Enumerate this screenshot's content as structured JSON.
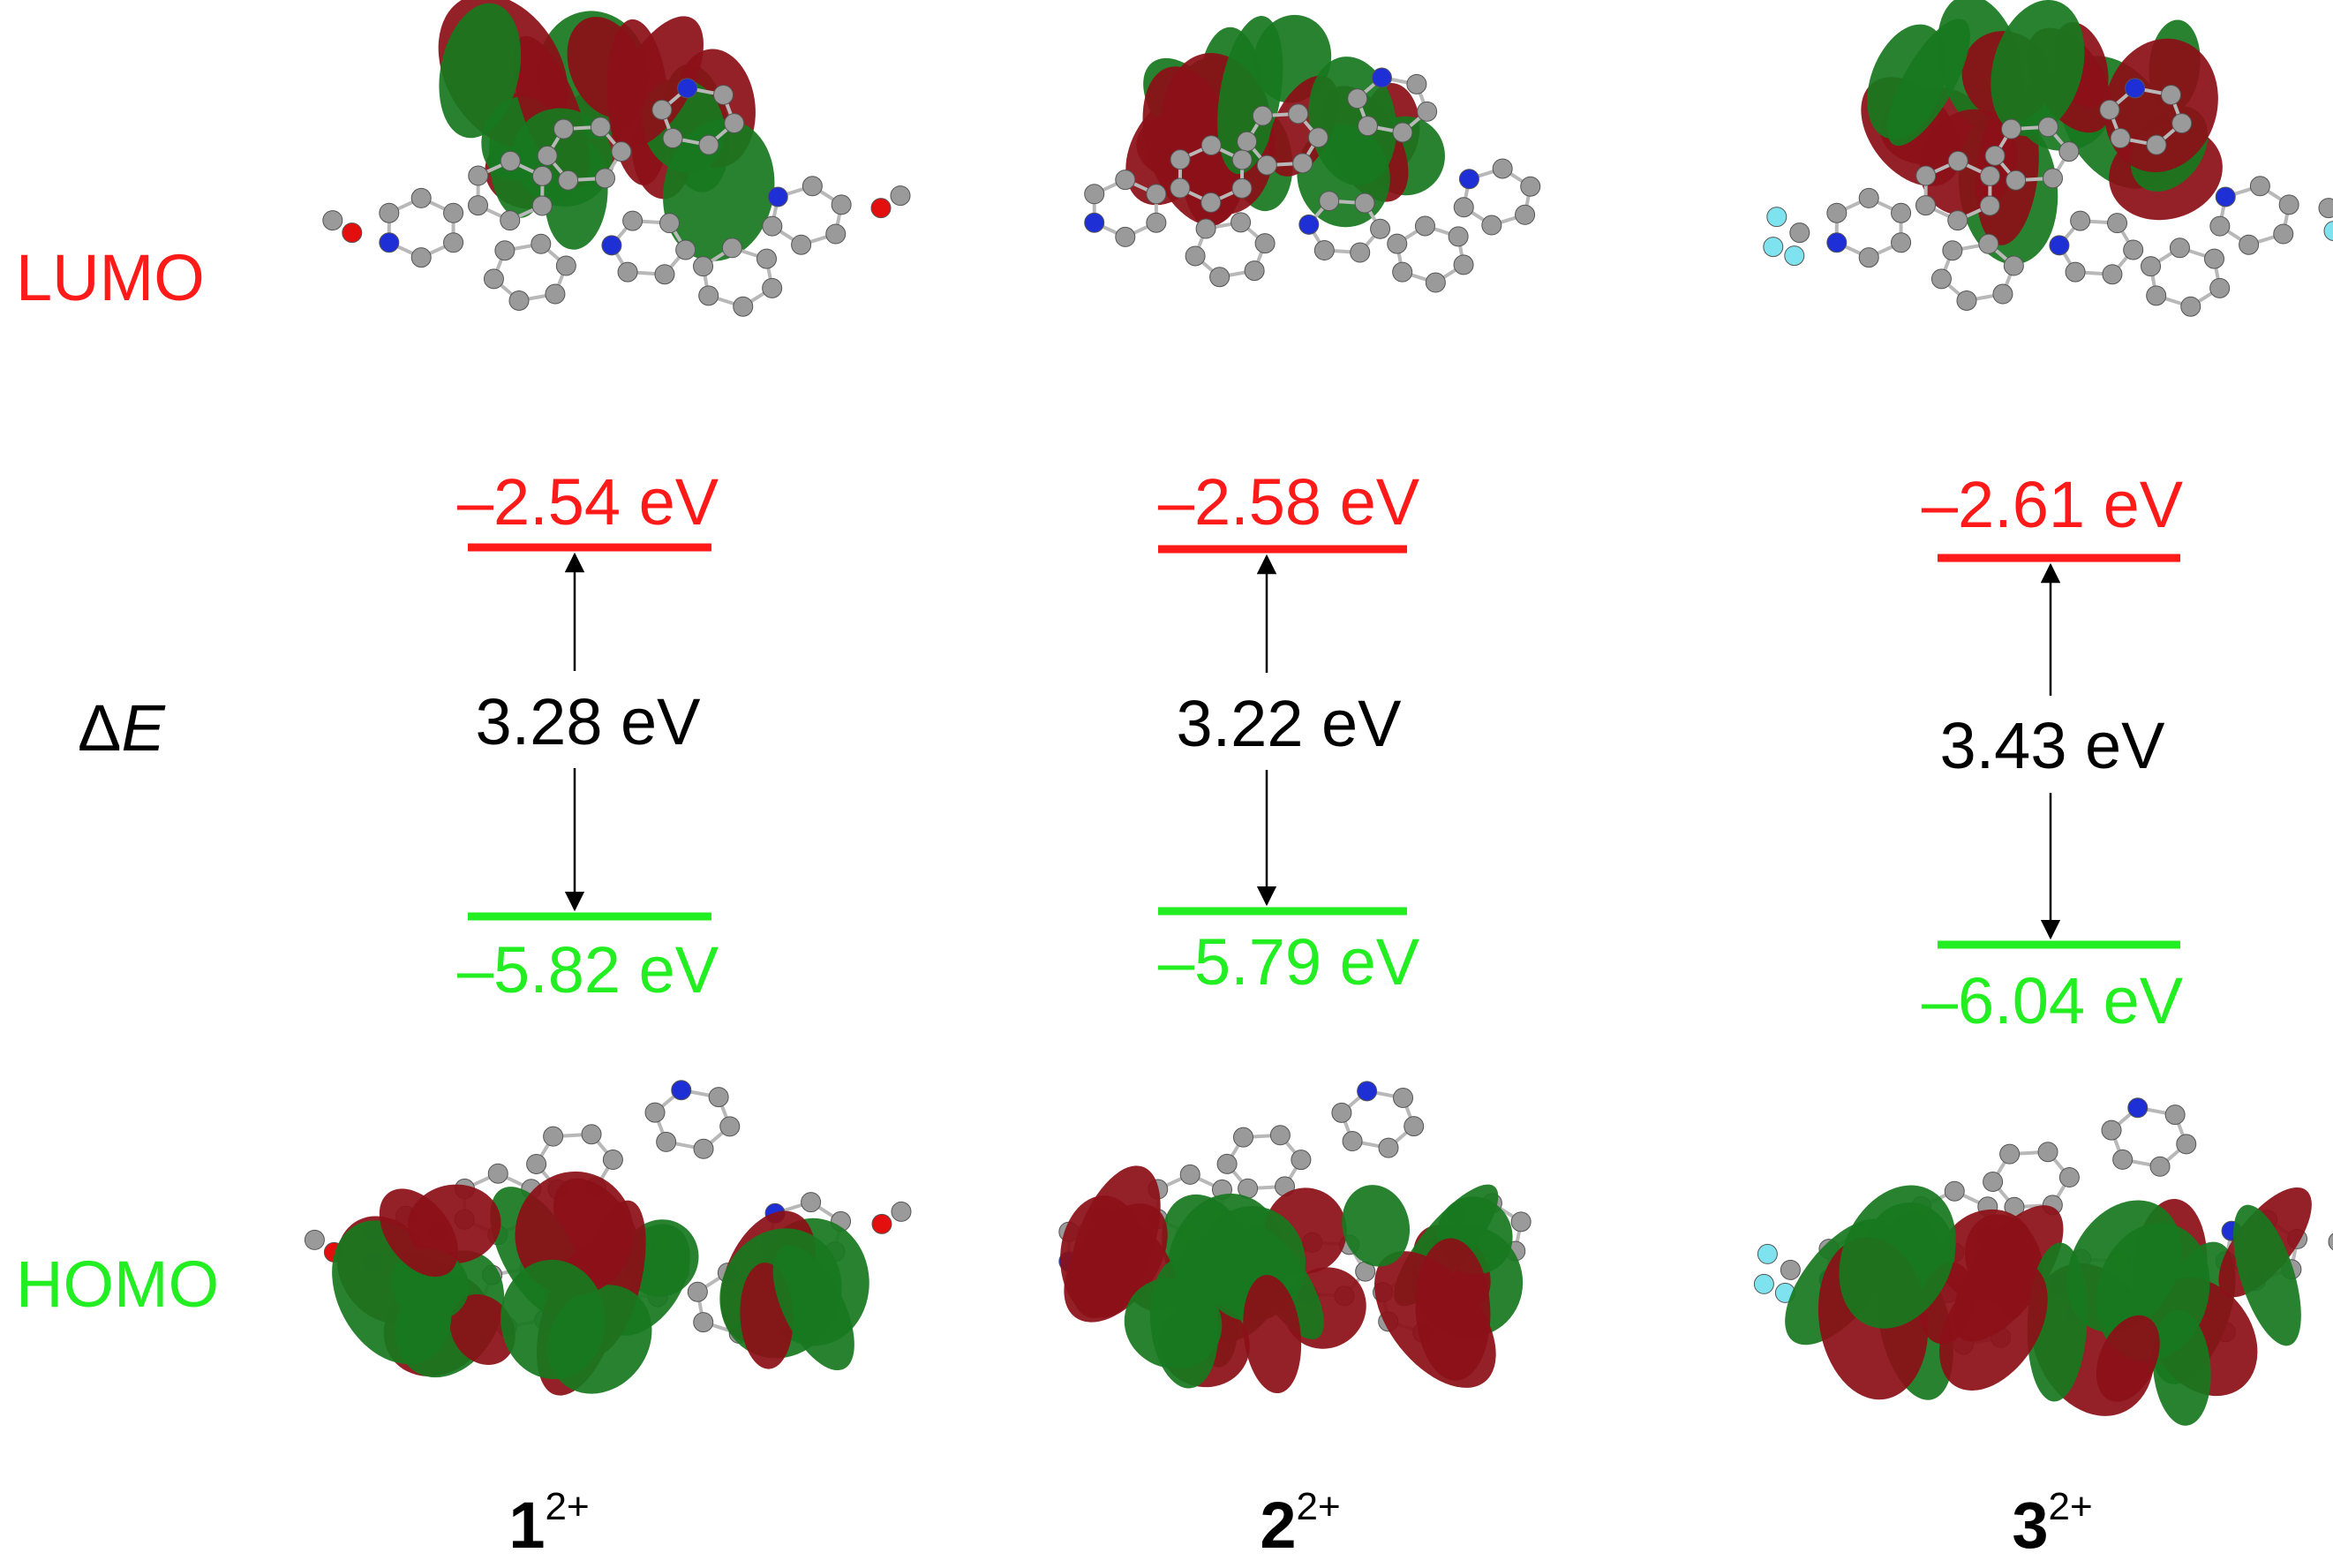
{
  "colors": {
    "lumo": "#ff1a1a",
    "homo": "#22ee22",
    "lobe_red": "#8c1018",
    "lobe_green": "#18781f",
    "carbon": "#9a9a9a",
    "nitrogen": "#1f2fd6",
    "oxygen": "#e30f0f",
    "fluorine": "#7fe3ef",
    "arrow": "#000000"
  },
  "labels": {
    "lumo": "LUMO",
    "homo": "HOMO",
    "delta_symbol": "Δ",
    "delta_var": "E"
  },
  "compounds": [
    {
      "number": "1",
      "charge": "2+",
      "lumo_energy": "–2.54 eV",
      "homo_energy": "–5.82 eV",
      "gap": "3.28 eV",
      "substituent": "methoxy"
    },
    {
      "number": "2",
      "charge": "2+",
      "lumo_energy": "–2.58 eV",
      "homo_energy": "–5.79 eV",
      "gap": "3.22 eV",
      "substituent": "none"
    },
    {
      "number": "3",
      "charge": "2+",
      "lumo_energy": "–2.61 eV",
      "homo_energy": "–6.04 eV",
      "gap": "3.43 eV",
      "substituent": "trifluoromethyl"
    }
  ]
}
